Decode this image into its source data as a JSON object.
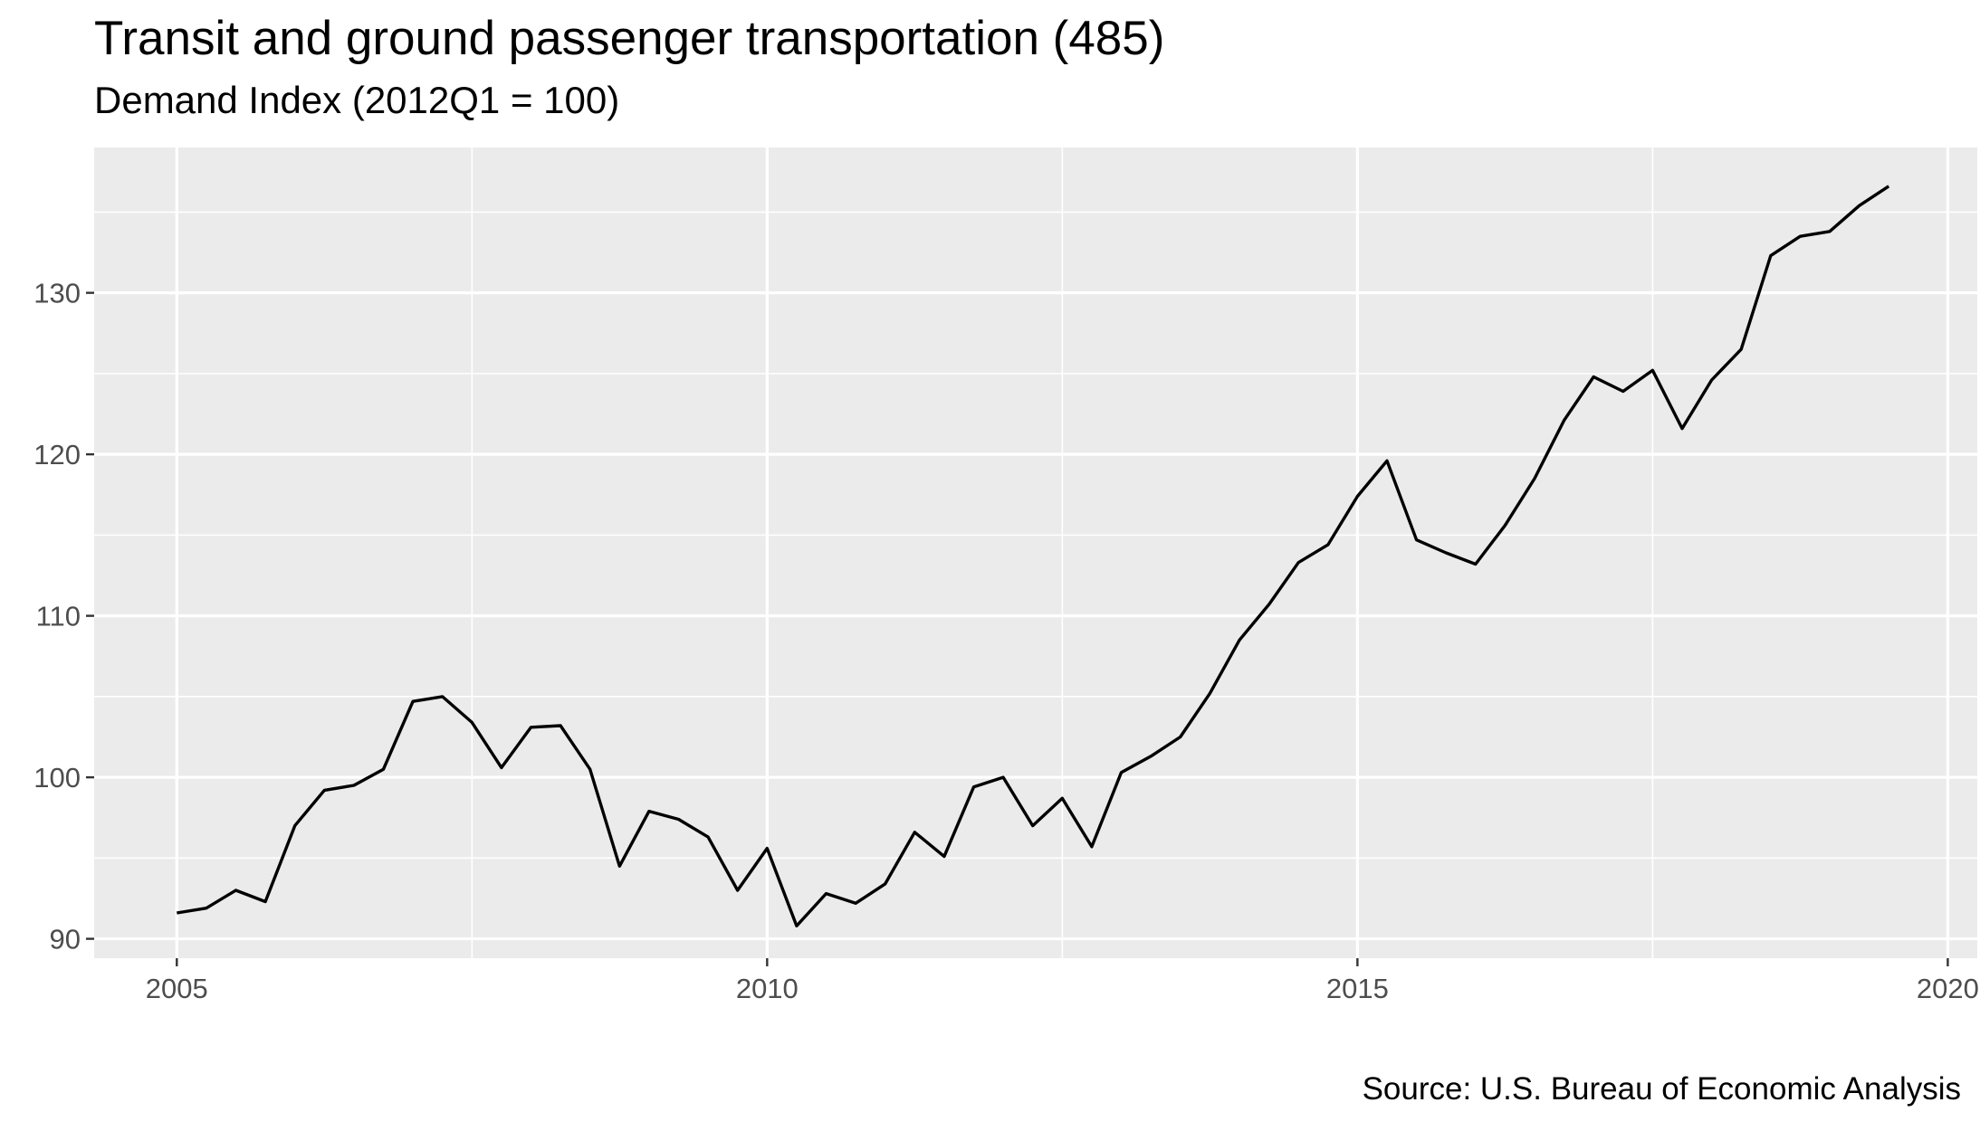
{
  "chart_data": {
    "type": "line",
    "title": "Transit and ground passenger transportation (485)",
    "subtitle": "Demand Index (2012Q1 = 100)",
    "caption": "Source: U.S. Bureau of Economic Analysis",
    "xlabel": "",
    "ylabel": "",
    "x_ticks": [
      2005,
      2010,
      2015,
      2020
    ],
    "y_ticks": [
      90,
      100,
      110,
      120,
      130
    ],
    "xlim": [
      2004.3,
      2020.25
    ],
    "ylim": [
      88.8,
      139.0
    ],
    "grid": true,
    "legend": "none",
    "line_color": "#000000",
    "panel_background": "#ebebeb",
    "gridline_color": "#ffffff",
    "series": [
      {
        "x": [
          2005.0,
          2005.25,
          2005.5,
          2005.75,
          2006.0,
          2006.25,
          2006.5,
          2006.75,
          2007.0,
          2007.25,
          2007.5,
          2007.75,
          2008.0,
          2008.25,
          2008.5,
          2008.75,
          2009.0,
          2009.25,
          2009.5,
          2009.75,
          2010.0,
          2010.25,
          2010.5,
          2010.75,
          2011.0,
          2011.25,
          2011.5,
          2011.75,
          2012.0,
          2012.25,
          2012.5,
          2012.75,
          2013.0,
          2013.25,
          2013.5,
          2013.75,
          2014.0,
          2014.25,
          2014.5,
          2014.75,
          2015.0,
          2015.25,
          2015.5,
          2015.75,
          2016.0,
          2016.25,
          2016.5,
          2016.75,
          2017.0,
          2017.25,
          2017.5,
          2017.75,
          2018.0,
          2018.25,
          2018.5,
          2018.75,
          2019.0,
          2019.25,
          2019.5
        ],
        "values": [
          91.6,
          91.9,
          93.0,
          92.3,
          97.0,
          99.2,
          99.5,
          100.5,
          104.7,
          105.0,
          103.4,
          100.6,
          103.1,
          103.2,
          100.5,
          94.5,
          97.9,
          97.4,
          96.3,
          93.0,
          95.6,
          90.8,
          92.8,
          92.2,
          93.4,
          96.6,
          95.1,
          99.4,
          100.0,
          97.0,
          98.7,
          95.7,
          100.3,
          101.3,
          102.5,
          105.2,
          108.5,
          110.7,
          113.3,
          114.4,
          117.4,
          119.6,
          114.7,
          113.9,
          113.2,
          115.6,
          118.5,
          122.1,
          124.8,
          123.9,
          125.2,
          121.6,
          124.6,
          126.5,
          132.3,
          133.5,
          133.8,
          135.4,
          136.6
        ]
      }
    ]
  }
}
